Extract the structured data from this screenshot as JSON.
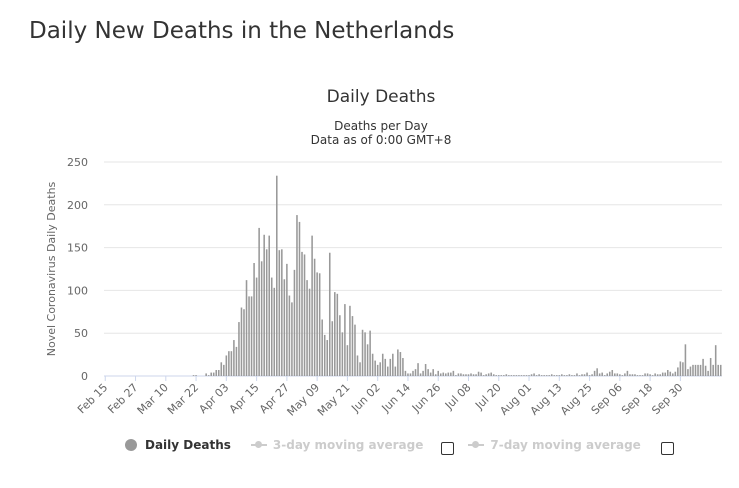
{
  "page": {
    "title": "Daily New Deaths in the Netherlands"
  },
  "chart_data": {
    "type": "bar",
    "title": "Daily Deaths",
    "subtitle_line1": "Deaths per Day",
    "subtitle_line2": "Data as of 0:00 GMT+8",
    "ylabel": "Novel Coronavirus Daily Deaths",
    "xlabel": "",
    "ylim": [
      0,
      250
    ],
    "yticks": [
      0,
      50,
      100,
      150,
      200,
      250
    ],
    "grid": true,
    "start_date": "Feb 15",
    "xtick_labels": [
      "Feb 15",
      "Feb 27",
      "Mar 10",
      "Mar 22",
      "Apr 03",
      "Apr 15",
      "Apr 27",
      "May 09",
      "May 21",
      "Jun 02",
      "Jun 14",
      "Jun 26",
      "Jul 08",
      "Jul 20",
      "Aug 01",
      "Aug 13",
      "Aug 25",
      "Sep 06",
      "Sep 18",
      "Sep 30"
    ],
    "xtick_every": 12,
    "series": [
      {
        "name": "Daily Deaths",
        "color": "#999999",
        "values": [
          0,
          0,
          0,
          0,
          0,
          0,
          0,
          0,
          0,
          0,
          0,
          0,
          0,
          0,
          0,
          0,
          0,
          0,
          0,
          0,
          0,
          0,
          0,
          0,
          0,
          0,
          0,
          0,
          0,
          0,
          0,
          0,
          0,
          0,
          0,
          1,
          1,
          0,
          0,
          0,
          3,
          1,
          4,
          4,
          7,
          7,
          16,
          13,
          24,
          29,
          29,
          42,
          34,
          63,
          80,
          78,
          112,
          93,
          93,
          132,
          115,
          173,
          134,
          165,
          148,
          164,
          115,
          103,
          234,
          147,
          148,
          113,
          131,
          94,
          86,
          124,
          188,
          180,
          145,
          142,
          112,
          102,
          164,
          137,
          121,
          120,
          66,
          48,
          42,
          144,
          64,
          98,
          96,
          71,
          51,
          84,
          36,
          82,
          70,
          60,
          24,
          16,
          54,
          51,
          37,
          53,
          26,
          18,
          13,
          16,
          26,
          20,
          11,
          20,
          26,
          11,
          31,
          28,
          21,
          6,
          3,
          3,
          6,
          8,
          15,
          3,
          6,
          14,
          8,
          4,
          8,
          2,
          6,
          3,
          4,
          3,
          4,
          4,
          6,
          1,
          3,
          3,
          2,
          2,
          2,
          3,
          2,
          2,
          5,
          4,
          1,
          2,
          3,
          4,
          2,
          1,
          1,
          1,
          1,
          2,
          1,
          1,
          1,
          1,
          1,
          1,
          1,
          1,
          1,
          2,
          3,
          1,
          2,
          1,
          1,
          1,
          1,
          2,
          1,
          1,
          1,
          2,
          1,
          1,
          2,
          1,
          1,
          3,
          1,
          2,
          2,
          4,
          1,
          2,
          6,
          9,
          3,
          4,
          1,
          3,
          5,
          7,
          3,
          3,
          2,
          1,
          3,
          6,
          2,
          2,
          2,
          1,
          1,
          1,
          3,
          3,
          2,
          1,
          3,
          2,
          2,
          4,
          4,
          7,
          5,
          3,
          5,
          10,
          17,
          16,
          37,
          8,
          11,
          13,
          13,
          13,
          13,
          20,
          12,
          6,
          21,
          13,
          36,
          13,
          13
        ]
      }
    ]
  },
  "legend": {
    "series_label": "Daily Deaths",
    "ma3_label": "3-day moving average",
    "ma7_label": "7-day moving average"
  },
  "colors": {
    "bar": "#999999",
    "grid": "#e6e6e6",
    "axis_text": "#666666",
    "title": "#333333"
  }
}
